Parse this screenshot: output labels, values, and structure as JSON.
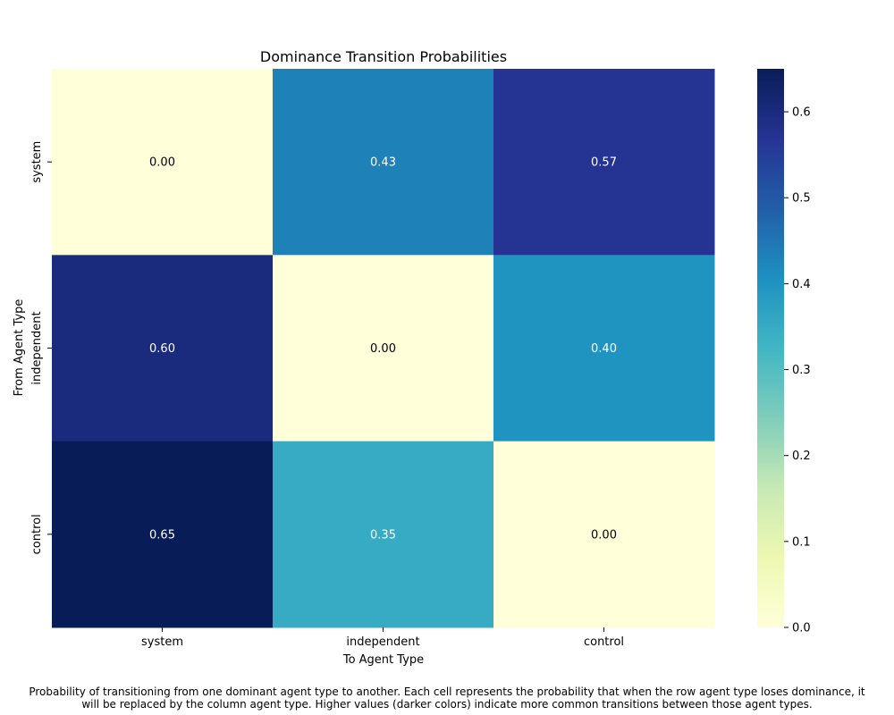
{
  "chart_data": {
    "type": "heatmap",
    "title": "Dominance Transition Probabilities",
    "xlabel": "To Agent Type",
    "ylabel": "From Agent Type",
    "x_categories": [
      "system",
      "independent",
      "control"
    ],
    "y_categories": [
      "system",
      "independent",
      "control"
    ],
    "values": [
      [
        0.0,
        0.43,
        0.57
      ],
      [
        0.6,
        0.0,
        0.4
      ],
      [
        0.65,
        0.35,
        0.0
      ]
    ],
    "value_labels": [
      [
        "0.00",
        "0.43",
        "0.57"
      ],
      [
        "0.60",
        "0.00",
        "0.40"
      ],
      [
        "0.65",
        "0.35",
        "0.00"
      ]
    ],
    "colormap": "YlGnBu",
    "vmin": 0,
    "vmax": 0.65,
    "colorbar_ticks": [
      0.0,
      0.1,
      0.2,
      0.3,
      0.4,
      0.5,
      0.6
    ],
    "colorbar_tick_labels": [
      "0.0",
      "0.1",
      "0.2",
      "0.3",
      "0.4",
      "0.5",
      "0.6"
    ],
    "annotation_colors": {
      "light_cell_text": "#000000",
      "dark_cell_text": "#ffffff"
    }
  },
  "caption": {
    "line1": "Probability of transitioning from one dominant agent type to another. Each cell represents the probability that when the row agent type loses dominance, it",
    "line2": "will be replaced by the column agent type. Higher values (darker colors) indicate more common transitions between those agent types."
  }
}
